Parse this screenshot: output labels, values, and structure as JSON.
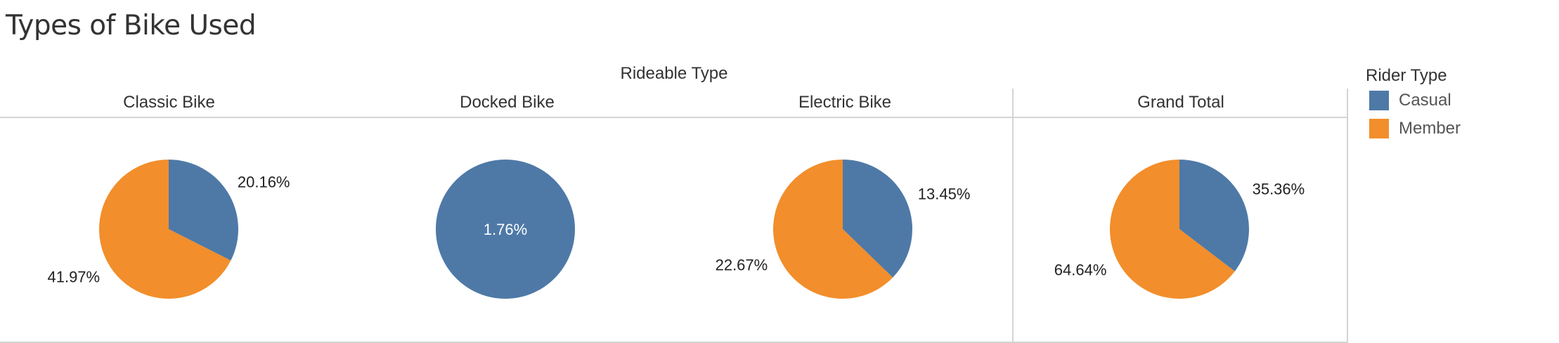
{
  "chart_data": {
    "type": "pie",
    "title": "Types of Bike Used",
    "column_group_label": "Rideable Type",
    "legend_title": "Rider Type",
    "legend_placement": "right",
    "series": [
      {
        "name": "Casual",
        "color": "#4e79a7"
      },
      {
        "name": "Member",
        "color": "#f28e2b"
      }
    ],
    "panels": [
      {
        "label": "Classic Bike",
        "slices": [
          {
            "series": "Casual",
            "value": 20.16,
            "label": "20.16%"
          },
          {
            "series": "Member",
            "value": 41.97,
            "label": "41.97%"
          }
        ]
      },
      {
        "label": "Docked Bike",
        "slices": [
          {
            "series": "Casual",
            "value": 1.76,
            "label": "1.76%"
          }
        ]
      },
      {
        "label": "Electric Bike",
        "slices": [
          {
            "series": "Casual",
            "value": 13.45,
            "label": "13.45%"
          },
          {
            "series": "Member",
            "value": 22.67,
            "label": "22.67%"
          }
        ]
      },
      {
        "label": "Grand Total",
        "slices": [
          {
            "series": "Casual",
            "value": 35.36,
            "label": "35.36%"
          },
          {
            "series": "Member",
            "value": 64.64,
            "label": "64.64%"
          }
        ]
      }
    ]
  }
}
